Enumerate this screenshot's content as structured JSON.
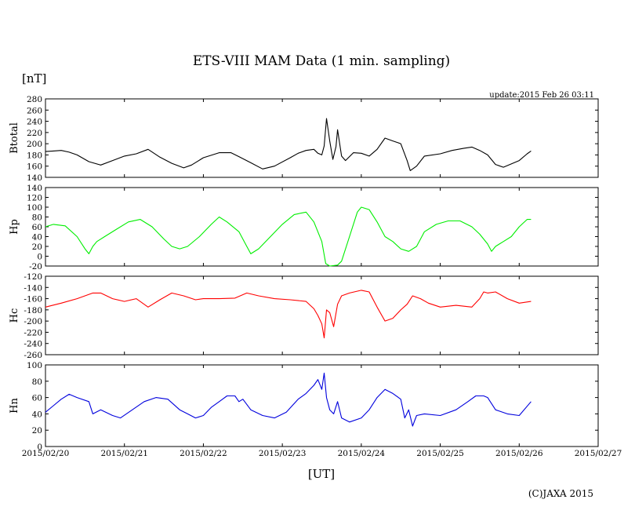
{
  "chart_data": {
    "type": "line",
    "title": "ETS-VIII MAM Data (1 min. sampling)",
    "y_unit": "[nT]",
    "update_text": "update:2015 Feb 26 03:11",
    "xlabel": "[UT]",
    "credit": "(C)JAXA 2015",
    "x_ticks": [
      "2015/02/20",
      "2015/02/21",
      "2015/02/22",
      "2015/02/23",
      "2015/02/24",
      "2015/02/25",
      "2015/02/26",
      "2015/02/27"
    ],
    "xlim": [
      "2015/02/20 00:00",
      "2015/02/27 00:00"
    ],
    "x_unit": "days since 2015/02/20 00:00 UT",
    "panels": [
      {
        "name": "Btotal",
        "color": "#000000",
        "ylim": [
          140,
          280
        ],
        "yticks": [
          140,
          160,
          180,
          200,
          220,
          240,
          260,
          280
        ],
        "series": [
          {
            "name": "Btotal",
            "x": [
              0.0,
              0.1,
              0.2,
              0.3,
              0.4,
              0.55,
              0.7,
              0.85,
              1.0,
              1.15,
              1.3,
              1.45,
              1.6,
              1.75,
              1.85,
              2.0,
              2.2,
              2.35,
              2.45,
              2.6,
              2.75,
              2.9,
              3.1,
              3.2,
              3.3,
              3.4,
              3.45,
              3.5,
              3.53,
              3.56,
              3.6,
              3.64,
              3.68,
              3.7,
              3.75,
              3.8,
              3.9,
              4.0,
              4.1,
              4.2,
              4.3,
              4.4,
              4.5,
              4.58,
              4.62,
              4.7,
              4.8,
              5.0,
              5.15,
              5.3,
              5.4,
              5.5,
              5.6,
              5.7,
              5.8,
              6.0,
              6.1,
              6.15
            ],
            "y": [
              186,
              187,
              188,
              185,
              180,
              168,
              162,
              170,
              178,
              182,
              190,
              176,
              165,
              157,
              162,
              175,
              184,
              184,
              177,
              166,
              155,
              160,
              175,
              183,
              188,
              190,
              183,
              180,
              196,
              245,
              205,
              172,
              195,
              225,
              178,
              170,
              184,
              183,
              178,
              190,
              210,
              205,
              200,
              170,
              152,
              160,
              178,
              182,
              188,
              192,
              194,
              188,
              180,
              163,
              158,
              170,
              182,
              187
            ]
          }
        ]
      },
      {
        "name": "Hp",
        "color": "#00ee00",
        "ylim": [
          -20,
          140
        ],
        "yticks": [
          -20,
          0,
          20,
          40,
          60,
          80,
          100,
          120,
          140
        ],
        "series": [
          {
            "name": "Hp",
            "x": [
              0.0,
              0.1,
              0.25,
              0.4,
              0.5,
              0.55,
              0.6,
              0.65,
              0.75,
              0.9,
              1.05,
              1.2,
              1.35,
              1.5,
              1.6,
              1.7,
              1.8,
              1.95,
              2.1,
              2.2,
              2.3,
              2.45,
              2.55,
              2.6,
              2.7,
              2.85,
              3.0,
              3.15,
              3.3,
              3.4,
              3.5,
              3.55,
              3.6,
              3.7,
              3.75,
              3.85,
              3.95,
              4.0,
              4.1,
              4.2,
              4.3,
              4.4,
              4.5,
              4.6,
              4.7,
              4.8,
              4.95,
              5.1,
              5.25,
              5.4,
              5.5,
              5.6,
              5.65,
              5.7,
              5.75,
              5.8,
              5.9,
              6.0,
              6.1,
              6.15
            ],
            "y": [
              60,
              65,
              62,
              40,
              15,
              5,
              20,
              30,
              40,
              55,
              70,
              75,
              60,
              35,
              20,
              15,
              20,
              40,
              65,
              80,
              70,
              50,
              20,
              5,
              15,
              40,
              65,
              85,
              90,
              70,
              30,
              -15,
              -20,
              -18,
              -10,
              40,
              90,
              100,
              95,
              70,
              40,
              30,
              15,
              10,
              20,
              50,
              65,
              72,
              72,
              60,
              45,
              25,
              10,
              20,
              25,
              30,
              40,
              60,
              75,
              75
            ]
          }
        ]
      },
      {
        "name": "Hc",
        "color": "#ff0000",
        "ylim": [
          -260,
          -120
        ],
        "yticks": [
          -260,
          -240,
          -220,
          -200,
          -180,
          -160,
          -140,
          -120
        ],
        "series": [
          {
            "name": "Hc",
            "x": [
              0.0,
              0.2,
              0.4,
              0.6,
              0.7,
              0.85,
              1.0,
              1.15,
              1.3,
              1.45,
              1.6,
              1.75,
              1.9,
              2.0,
              2.2,
              2.4,
              2.55,
              2.7,
              2.9,
              3.1,
              3.3,
              3.4,
              3.45,
              3.5,
              3.53,
              3.56,
              3.6,
              3.65,
              3.7,
              3.75,
              3.85,
              4.0,
              4.1,
              4.2,
              4.3,
              4.4,
              4.5,
              4.58,
              4.65,
              4.75,
              4.85,
              5.0,
              5.2,
              5.4,
              5.5,
              5.55,
              5.6,
              5.7,
              5.85,
              6.0,
              6.15
            ],
            "y": [
              -175,
              -168,
              -160,
              -150,
              -150,
              -160,
              -165,
              -160,
              -175,
              -162,
              -150,
              -155,
              -162,
              -160,
              -160,
              -159,
              -150,
              -155,
              -160,
              -162,
              -165,
              -178,
              -190,
              -205,
              -230,
              -180,
              -185,
              -210,
              -170,
              -155,
              -150,
              -145,
              -148,
              -175,
              -200,
              -195,
              -180,
              -170,
              -155,
              -160,
              -168,
              -175,
              -172,
              -175,
              -160,
              -148,
              -150,
              -148,
              -160,
              -168,
              -165
            ]
          }
        ]
      },
      {
        "name": "Hn",
        "color": "#0000dd",
        "ylim": [
          0,
          100
        ],
        "yticks": [
          0,
          20,
          40,
          60,
          80,
          100
        ],
        "series": [
          {
            "name": "Hn",
            "x": [
              0.0,
              0.1,
              0.2,
              0.3,
              0.4,
              0.55,
              0.6,
              0.7,
              0.85,
              0.95,
              1.1,
              1.25,
              1.4,
              1.55,
              1.7,
              1.8,
              1.9,
              2.0,
              2.1,
              2.2,
              2.3,
              2.4,
              2.45,
              2.5,
              2.6,
              2.75,
              2.9,
              3.05,
              3.2,
              3.3,
              3.4,
              3.45,
              3.5,
              3.53,
              3.56,
              3.6,
              3.65,
              3.7,
              3.75,
              3.85,
              4.0,
              4.1,
              4.2,
              4.3,
              4.4,
              4.5,
              4.55,
              4.6,
              4.65,
              4.7,
              4.8,
              5.0,
              5.2,
              5.35,
              5.45,
              5.55,
              5.6,
              5.7,
              5.85,
              6.0,
              6.15
            ],
            "y": [
              42,
              50,
              58,
              64,
              60,
              55,
              40,
              45,
              38,
              35,
              45,
              55,
              60,
              58,
              45,
              40,
              35,
              38,
              48,
              55,
              62,
              62,
              55,
              58,
              45,
              38,
              35,
              42,
              58,
              65,
              75,
              82,
              70,
              90,
              60,
              45,
              40,
              55,
              35,
              30,
              35,
              45,
              60,
              70,
              65,
              58,
              35,
              45,
              25,
              38,
              40,
              38,
              45,
              55,
              62,
              62,
              60,
              45,
              40,
              38,
              55
            ]
          }
        ]
      }
    ]
  }
}
